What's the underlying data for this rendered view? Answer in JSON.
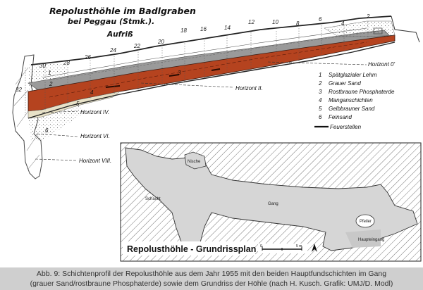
{
  "profile": {
    "title_line1": "Repolusthöhle im Badlgraben",
    "title_line2": "bei Peggau (Stmk.).",
    "subtitle": "Aufriß",
    "stations": [
      "2",
      "4",
      "6",
      "8",
      "10",
      "12",
      "14",
      "16",
      "18",
      "20",
      "22",
      "24",
      "26",
      "28",
      "30",
      "32"
    ],
    "layer_numbers": [
      "1",
      "2",
      "3",
      "4",
      "5",
      "6"
    ],
    "horizons": {
      "h0": "Horizont 0'",
      "h2": "Horizont II.",
      "h4": "Horizont IV.",
      "h6": "Horizont VI.",
      "h8": "Horizont VIII."
    },
    "legend": [
      {
        "num": "1",
        "label": "Spätglazialer Lehm"
      },
      {
        "num": "2",
        "label": "Grauer Sand"
      },
      {
        "num": "3",
        "label": "Rostbraune Phosphaterde"
      },
      {
        "num": "4",
        "label": "Manganschichten"
      },
      {
        "num": "5",
        "label": "Gelbbrauner Sand"
      },
      {
        "num": "6",
        "label": "Feinsand"
      }
    ],
    "legend_line_label": "Feuerstellen",
    "colors": {
      "phosphate": "#b5431f",
      "grey_sand": "#9a9a9a"
    }
  },
  "plan": {
    "title": "Repolusthöhle - Grundrissplan",
    "labels": {
      "nische": "Nische",
      "schacht": "Schacht",
      "gang": "Gang",
      "pfeiler": "Pfeiler",
      "haupteingang": "Haupteingang"
    },
    "scale_zero": "0",
    "scale_end": "5 m"
  },
  "caption": {
    "line1": "Abb. 9: Schichtenprofil der Repolusthöhle aus dem Jahr 1955 mit den beiden Hauptfundschichten im Gang",
    "line2": "(grauer Sand/rostbraune Phosphaterde) sowie dem Grundriss der Höhle (nach H. Kusch. Grafik: UMJ/D. Modl)"
  }
}
